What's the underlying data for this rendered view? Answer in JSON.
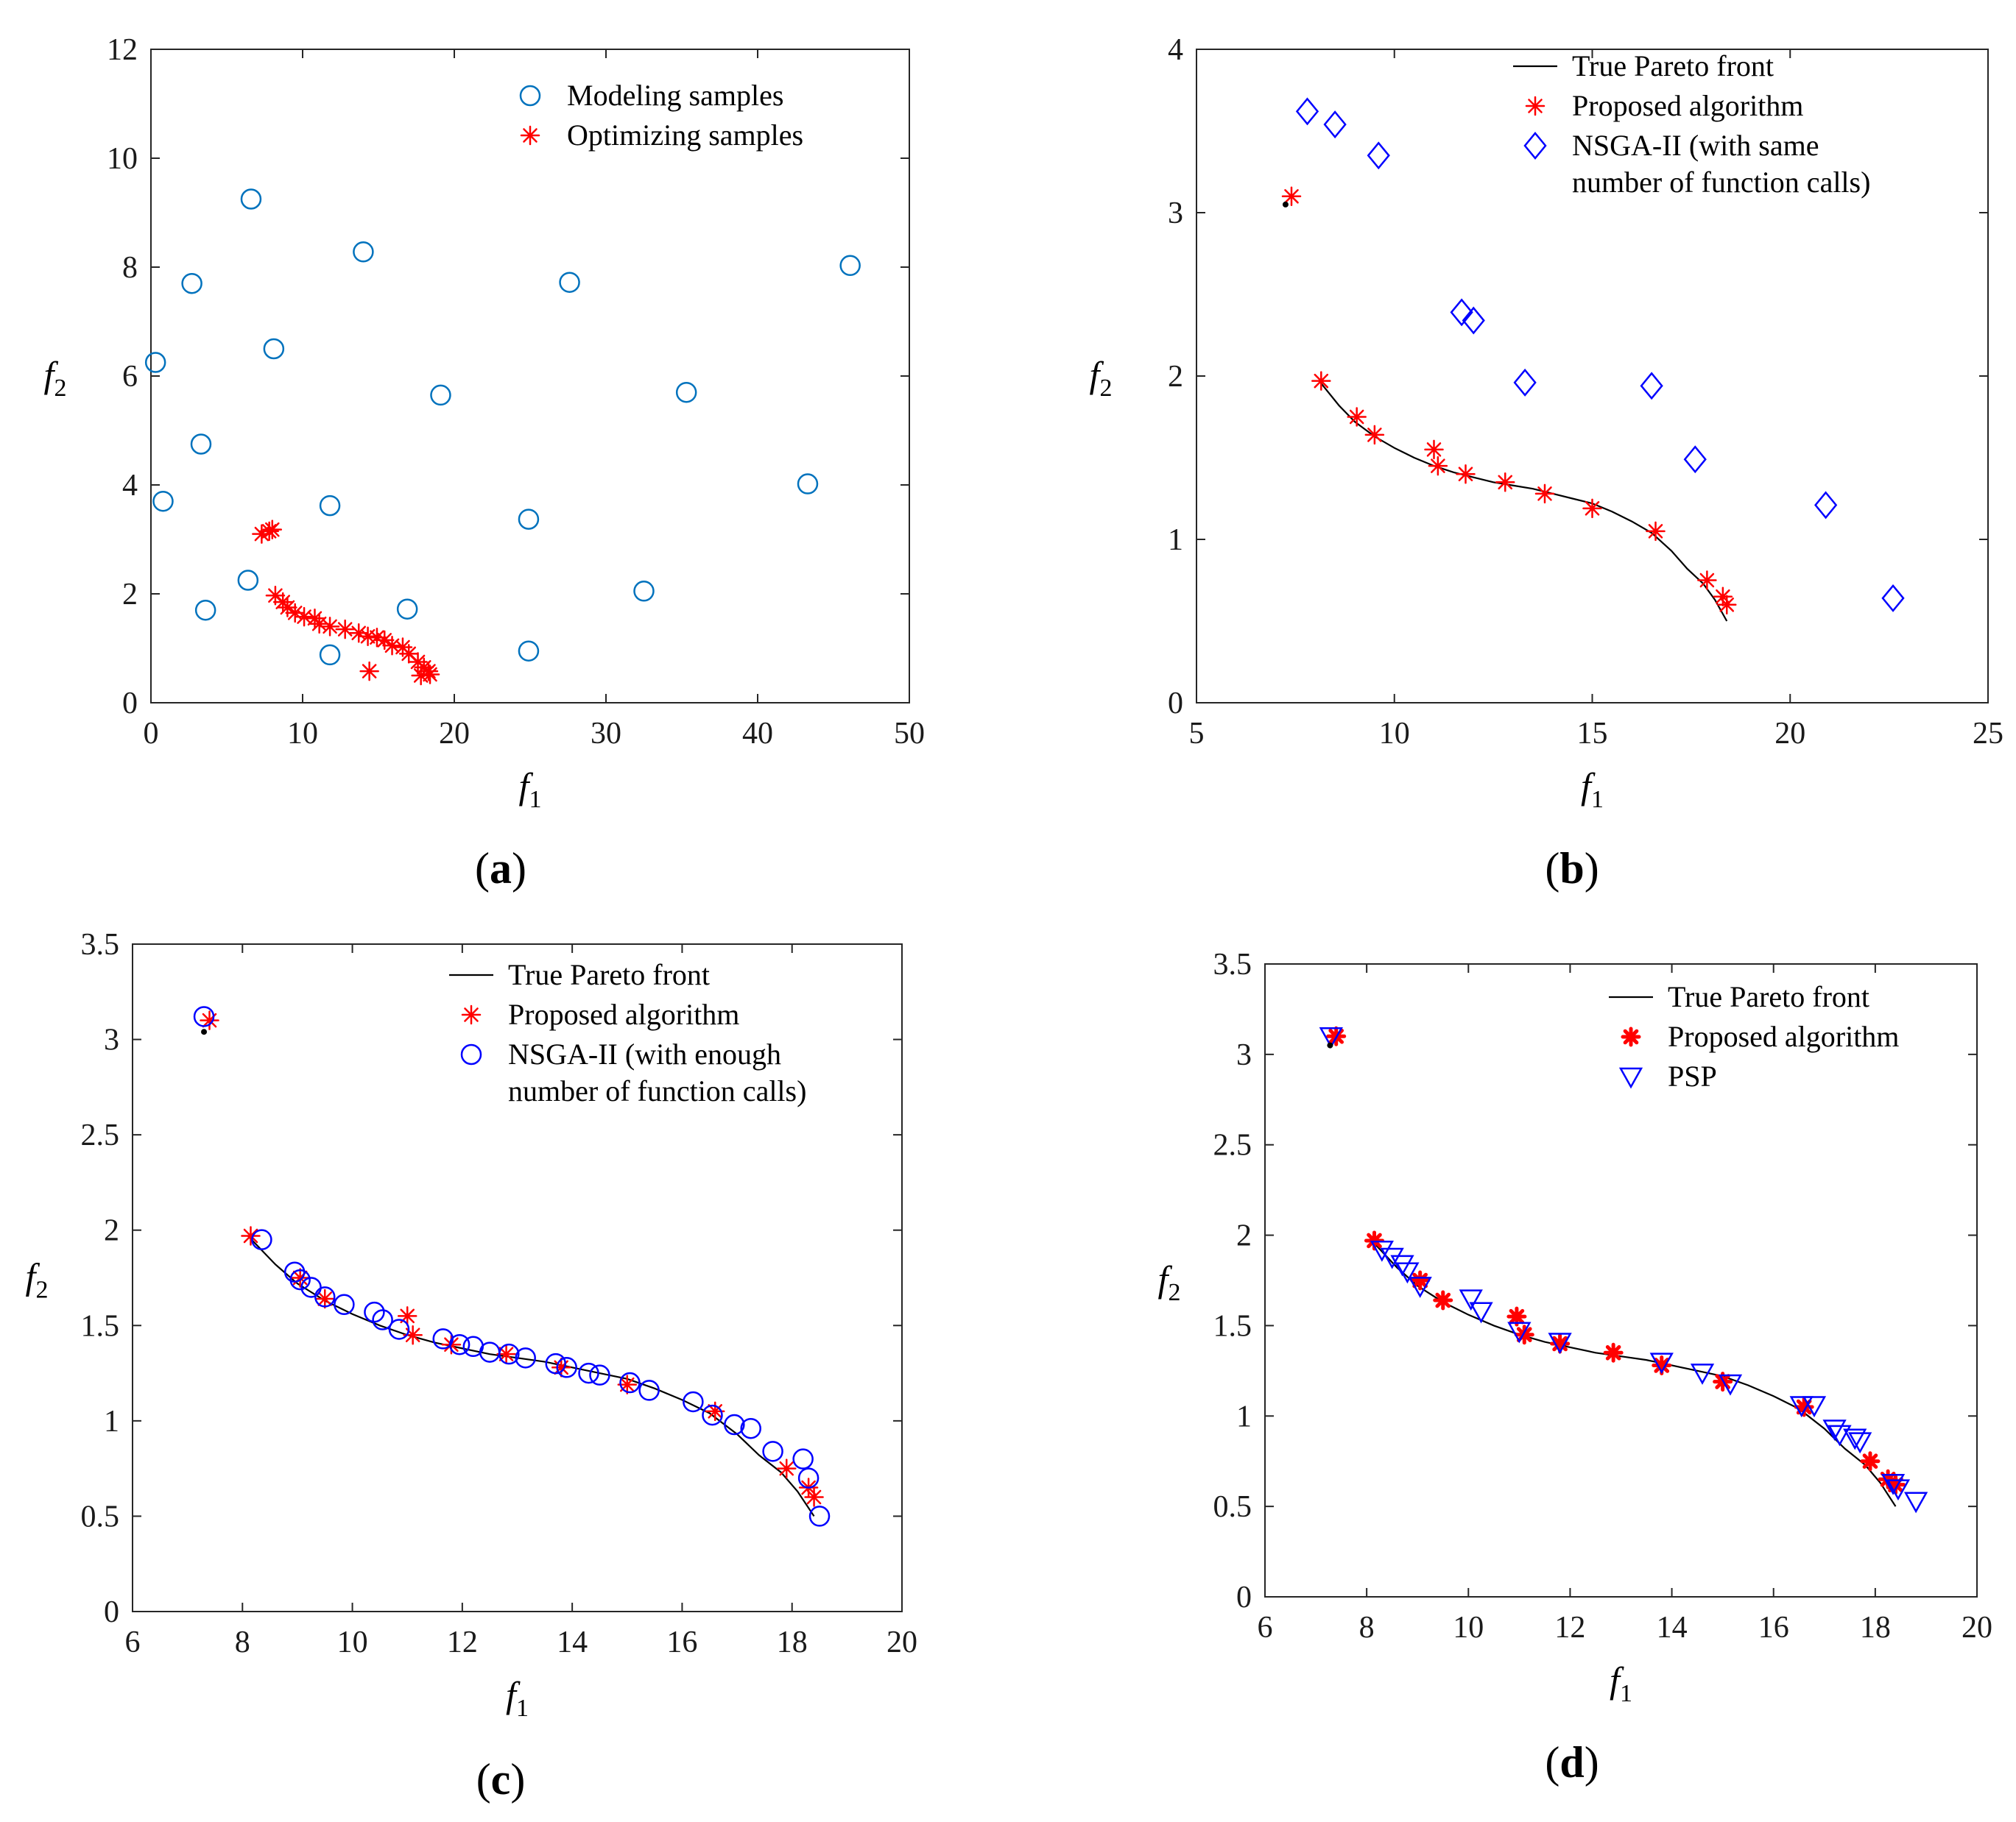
{
  "colors": {
    "teal": "#0072BD",
    "red": "#FF0000",
    "blue": "#0000FF",
    "black": "#000000"
  },
  "chart_data": [
    {
      "id": "a",
      "type": "scatter",
      "caption_letter": "a",
      "xlabel": "f",
      "xlabel_sub": "1",
      "ylabel": "f",
      "ylabel_sub": "2",
      "xlim": [
        0,
        50
      ],
      "ylim": [
        0,
        12
      ],
      "xticks": [
        0,
        10,
        20,
        30,
        40,
        50
      ],
      "yticks": [
        0,
        2,
        4,
        6,
        8,
        10,
        12
      ],
      "legend_position": "top-right",
      "series": [
        {
          "name": "Modeling samples",
          "marker": "circle",
          "color": "#0072BD",
          "points": [
            [
              0.3,
              6.25
            ],
            [
              0.8,
              3.7
            ],
            [
              2.7,
              7.7
            ],
            [
              3.3,
              4.75
            ],
            [
              3.6,
              1.7
            ],
            [
              6.4,
              2.25
            ],
            [
              6.6,
              9.25
            ],
            [
              8.1,
              6.5
            ],
            [
              11.8,
              3.62
            ],
            [
              11.8,
              0.88
            ],
            [
              14.0,
              8.28
            ],
            [
              16.9,
              1.72
            ],
            [
              19.1,
              5.65
            ],
            [
              24.9,
              3.37
            ],
            [
              24.9,
              0.95
            ],
            [
              27.6,
              7.72
            ],
            [
              32.5,
              2.05
            ],
            [
              35.3,
              5.7
            ],
            [
              43.3,
              4.02
            ],
            [
              46.1,
              8.03
            ]
          ]
        },
        {
          "name": "Optimizing samples",
          "marker": "star",
          "color": "#FF0000",
          "points": [
            [
              7.3,
              3.1
            ],
            [
              7.8,
              3.15
            ],
            [
              8.0,
              3.18
            ],
            [
              8.2,
              1.97
            ],
            [
              8.7,
              1.85
            ],
            [
              9.0,
              1.75
            ],
            [
              9.5,
              1.65
            ],
            [
              10.1,
              1.58
            ],
            [
              10.8,
              1.55
            ],
            [
              11.1,
              1.45
            ],
            [
              11.8,
              1.4
            ],
            [
              12.8,
              1.35
            ],
            [
              13.7,
              1.28
            ],
            [
              14.3,
              1.22
            ],
            [
              14.9,
              1.2
            ],
            [
              15.4,
              1.15
            ],
            [
              15.9,
              1.05
            ],
            [
              16.6,
              1.02
            ],
            [
              17.0,
              0.9
            ],
            [
              17.6,
              0.75
            ],
            [
              18.0,
              0.65
            ],
            [
              18.3,
              0.58
            ],
            [
              17.8,
              0.5
            ],
            [
              18.4,
              0.52
            ],
            [
              14.4,
              0.58
            ]
          ]
        }
      ]
    },
    {
      "id": "b",
      "type": "scatter",
      "caption_letter": "b",
      "xlabel": "f",
      "xlabel_sub": "1",
      "ylabel": "f",
      "ylabel_sub": "2",
      "xlim": [
        5,
        25
      ],
      "ylim": [
        0,
        4
      ],
      "xticks": [
        5,
        10,
        15,
        20,
        25
      ],
      "yticks": [
        0,
        1,
        2,
        3,
        4
      ],
      "legend_position": "top-right",
      "series": [
        {
          "name": "True Pareto front",
          "marker": "line",
          "color": "#000000",
          "points": [
            [
              8.1,
              1.97
            ],
            [
              8.6,
              1.82
            ],
            [
              9.0,
              1.72
            ],
            [
              9.5,
              1.63
            ],
            [
              10.0,
              1.56
            ],
            [
              10.5,
              1.5
            ],
            [
              11.0,
              1.45
            ],
            [
              11.5,
              1.41
            ],
            [
              12.0,
              1.38
            ],
            [
              12.5,
              1.35
            ],
            [
              13.0,
              1.33
            ],
            [
              13.5,
              1.31
            ],
            [
              14.0,
              1.28
            ],
            [
              14.5,
              1.25
            ],
            [
              15.0,
              1.22
            ],
            [
              15.5,
              1.17
            ],
            [
              16.0,
              1.11
            ],
            [
              16.5,
              1.04
            ],
            [
              17.0,
              0.93
            ],
            [
              17.4,
              0.82
            ],
            [
              17.8,
              0.73
            ],
            [
              18.1,
              0.63
            ],
            [
              18.4,
              0.5
            ]
          ]
        },
        {
          "name": "Proposed algorithm",
          "marker": "star",
          "color": "#FF0000",
          "points": [
            [
              7.4,
              3.1
            ],
            [
              8.15,
              1.97
            ],
            [
              9.05,
              1.75
            ],
            [
              9.5,
              1.64
            ],
            [
              11.0,
              1.55
            ],
            [
              11.1,
              1.45
            ],
            [
              11.8,
              1.4
            ],
            [
              12.8,
              1.35
            ],
            [
              13.8,
              1.28
            ],
            [
              15.0,
              1.19
            ],
            [
              16.6,
              1.05
            ],
            [
              17.9,
              0.75
            ],
            [
              18.3,
              0.65
            ],
            [
              18.4,
              0.6
            ]
          ]
        },
        {
          "name": "NSGA-II (with same",
          "name_line2": "number of function calls)",
          "marker": "diamond",
          "color": "#0000FF",
          "points": [
            [
              7.8,
              3.62
            ],
            [
              8.5,
              3.54
            ],
            [
              9.6,
              3.35
            ],
            [
              11.7,
              2.39
            ],
            [
              12.0,
              2.34
            ],
            [
              13.3,
              1.96
            ],
            [
              16.5,
              1.94
            ],
            [
              17.6,
              1.49
            ],
            [
              20.9,
              1.21
            ],
            [
              22.6,
              0.64
            ]
          ]
        },
        {
          "name": "",
          "marker": "dot",
          "color": "#000000",
          "legend": false,
          "points": [
            [
              7.25,
              3.05
            ]
          ]
        }
      ]
    },
    {
      "id": "c",
      "type": "scatter",
      "caption_letter": "c",
      "xlabel": "f",
      "xlabel_sub": "1",
      "ylabel": "f",
      "ylabel_sub": "2",
      "xlim": [
        6,
        20
      ],
      "ylim": [
        0,
        3.5
      ],
      "xticks": [
        6,
        8,
        10,
        12,
        14,
        16,
        18,
        20
      ],
      "yticks": [
        0,
        0.5,
        1,
        1.5,
        2,
        2.5,
        3,
        3.5
      ],
      "legend_position": "top-right",
      "series": [
        {
          "name": "True Pareto front",
          "marker": "line",
          "color": "#000000",
          "points": [
            [
              8.1,
              1.97
            ],
            [
              8.6,
              1.82
            ],
            [
              9.0,
              1.72
            ],
            [
              9.5,
              1.63
            ],
            [
              10.0,
              1.56
            ],
            [
              10.5,
              1.5
            ],
            [
              11.0,
              1.45
            ],
            [
              11.5,
              1.41
            ],
            [
              12.0,
              1.38
            ],
            [
              12.5,
              1.35
            ],
            [
              13.0,
              1.33
            ],
            [
              13.5,
              1.31
            ],
            [
              14.0,
              1.28
            ],
            [
              14.5,
              1.25
            ],
            [
              15.0,
              1.22
            ],
            [
              15.5,
              1.17
            ],
            [
              16.0,
              1.11
            ],
            [
              16.5,
              1.04
            ],
            [
              17.0,
              0.93
            ],
            [
              17.4,
              0.82
            ],
            [
              17.8,
              0.73
            ],
            [
              18.1,
              0.63
            ],
            [
              18.4,
              0.5
            ]
          ]
        },
        {
          "name": "Proposed algorithm",
          "marker": "star",
          "color": "#FF0000",
          "points": [
            [
              7.4,
              3.1
            ],
            [
              8.15,
              1.97
            ],
            [
              9.05,
              1.75
            ],
            [
              9.5,
              1.64
            ],
            [
              11.0,
              1.55
            ],
            [
              11.1,
              1.45
            ],
            [
              11.8,
              1.4
            ],
            [
              12.8,
              1.35
            ],
            [
              13.8,
              1.28
            ],
            [
              15.0,
              1.19
            ],
            [
              16.6,
              1.05
            ],
            [
              17.9,
              0.75
            ],
            [
              18.3,
              0.65
            ],
            [
              18.4,
              0.6
            ]
          ]
        },
        {
          "name": "NSGA-II (with enough",
          "name_line2": "number of function calls)",
          "marker": "circle",
          "color": "#0000FF",
          "points": [
            [
              7.3,
              3.12
            ],
            [
              8.35,
              1.95
            ],
            [
              8.95,
              1.78
            ],
            [
              9.05,
              1.74
            ],
            [
              9.25,
              1.7
            ],
            [
              9.5,
              1.65
            ],
            [
              9.85,
              1.61
            ],
            [
              10.4,
              1.57
            ],
            [
              10.55,
              1.53
            ],
            [
              10.85,
              1.48
            ],
            [
              11.65,
              1.43
            ],
            [
              11.95,
              1.4
            ],
            [
              12.2,
              1.39
            ],
            [
              12.5,
              1.36
            ],
            [
              12.85,
              1.35
            ],
            [
              13.15,
              1.33
            ],
            [
              13.7,
              1.3
            ],
            [
              13.9,
              1.28
            ],
            [
              14.3,
              1.25
            ],
            [
              14.5,
              1.24
            ],
            [
              15.05,
              1.2
            ],
            [
              15.4,
              1.16
            ],
            [
              16.2,
              1.1
            ],
            [
              16.55,
              1.03
            ],
            [
              16.95,
              0.98
            ],
            [
              17.25,
              0.96
            ],
            [
              17.65,
              0.84
            ],
            [
              18.2,
              0.8
            ],
            [
              18.3,
              0.7
            ],
            [
              18.5,
              0.5
            ]
          ]
        },
        {
          "name": "",
          "marker": "dot",
          "color": "#000000",
          "legend": false,
          "points": [
            [
              7.3,
              3.04
            ]
          ]
        }
      ]
    },
    {
      "id": "d",
      "type": "scatter",
      "caption_letter": "d",
      "xlabel": "f",
      "xlabel_sub": "1",
      "ylabel": "f",
      "ylabel_sub": "2",
      "xlim": [
        6,
        20
      ],
      "ylim": [
        0,
        3.5
      ],
      "xticks": [
        6,
        8,
        10,
        12,
        14,
        16,
        18,
        20
      ],
      "yticks": [
        0,
        0.5,
        1,
        1.5,
        2,
        2.5,
        3,
        3.5
      ],
      "legend_position": "top-right",
      "series": [
        {
          "name": "True Pareto front",
          "marker": "line",
          "color": "#000000",
          "points": [
            [
              8.1,
              1.97
            ],
            [
              8.6,
              1.82
            ],
            [
              9.0,
              1.72
            ],
            [
              9.5,
              1.63
            ],
            [
              10.0,
              1.56
            ],
            [
              10.5,
              1.5
            ],
            [
              11.0,
              1.45
            ],
            [
              11.5,
              1.41
            ],
            [
              12.0,
              1.38
            ],
            [
              12.5,
              1.35
            ],
            [
              13.0,
              1.33
            ],
            [
              13.5,
              1.31
            ],
            [
              14.0,
              1.28
            ],
            [
              14.5,
              1.25
            ],
            [
              15.0,
              1.22
            ],
            [
              15.5,
              1.17
            ],
            [
              16.0,
              1.11
            ],
            [
              16.5,
              1.04
            ],
            [
              17.0,
              0.93
            ],
            [
              17.4,
              0.82
            ],
            [
              17.8,
              0.73
            ],
            [
              18.1,
              0.63
            ],
            [
              18.4,
              0.5
            ]
          ]
        },
        {
          "name": "Proposed algorithm",
          "marker": "boldstar",
          "color": "#FF0000",
          "points": [
            [
              7.4,
              3.1
            ],
            [
              8.15,
              1.97
            ],
            [
              9.05,
              1.75
            ],
            [
              9.5,
              1.64
            ],
            [
              10.95,
              1.55
            ],
            [
              11.1,
              1.45
            ],
            [
              11.8,
              1.4
            ],
            [
              12.85,
              1.35
            ],
            [
              13.8,
              1.28
            ],
            [
              15.0,
              1.19
            ],
            [
              16.6,
              1.05
            ],
            [
              17.9,
              0.75
            ],
            [
              18.25,
              0.65
            ],
            [
              18.4,
              0.62
            ]
          ]
        },
        {
          "name": "PSP",
          "marker": "triangle",
          "color": "#0000FF",
          "points": [
            [
              7.3,
              3.1
            ],
            [
              8.3,
              1.92
            ],
            [
              8.5,
              1.88
            ],
            [
              8.7,
              1.84
            ],
            [
              8.8,
              1.8
            ],
            [
              9.05,
              1.72
            ],
            [
              10.05,
              1.65
            ],
            [
              10.25,
              1.58
            ],
            [
              11.0,
              1.47
            ],
            [
              11.8,
              1.41
            ],
            [
              13.8,
              1.3
            ],
            [
              14.6,
              1.24
            ],
            [
              15.15,
              1.18
            ],
            [
              16.55,
              1.06
            ],
            [
              16.8,
              1.06
            ],
            [
              17.2,
              0.93
            ],
            [
              17.3,
              0.9
            ],
            [
              17.6,
              0.88
            ],
            [
              17.7,
              0.86
            ],
            [
              18.35,
              0.63
            ],
            [
              18.45,
              0.6
            ],
            [
              18.8,
              0.53
            ]
          ]
        },
        {
          "name": "",
          "marker": "dot",
          "color": "#000000",
          "legend": false,
          "points": [
            [
              7.28,
              3.05
            ]
          ]
        }
      ]
    }
  ]
}
